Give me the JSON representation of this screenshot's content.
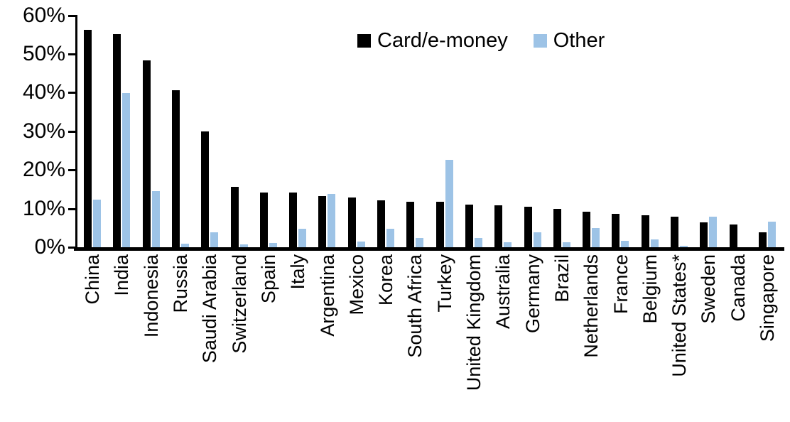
{
  "chart_data": {
    "type": "bar",
    "categories": [
      "China",
      "India",
      "Indonesia",
      "Russia",
      "Saudi Arabia",
      "Switzerland",
      "Spain",
      "Italy",
      "Argentina",
      "Mexico",
      "Korea",
      "South Africa",
      "Turkey",
      "United Kingdom",
      "Australia",
      "Germany",
      "Brazil",
      "Netherlands",
      "France",
      "Belgium",
      "United States*",
      "Sweden",
      "Canada",
      "Singapore"
    ],
    "series": [
      {
        "name": "Card/e-money",
        "color": "#000000",
        "values": [
          56.3,
          55.1,
          48.4,
          40.6,
          30.0,
          15.6,
          14.2,
          14.1,
          13.3,
          12.8,
          12.2,
          11.8,
          11.7,
          11.1,
          10.8,
          10.5,
          9.9,
          9.2,
          8.6,
          8.3,
          7.9,
          6.5,
          5.9,
          3.9
        ]
      },
      {
        "name": "Other",
        "color": "#9DC3E6",
        "values": [
          12.3,
          39.9,
          14.6,
          0.9,
          3.9,
          0.8,
          1.1,
          4.8,
          13.8,
          1.5,
          4.8,
          2.4,
          22.7,
          2.4,
          1.2,
          3.9,
          1.3,
          4.9,
          1.7,
          2.0,
          0.3,
          7.9,
          0,
          6.6
        ]
      }
    ],
    "ylabel": "",
    "xlabel": "",
    "ylim": [
      0,
      60
    ],
    "ytick_step": 10,
    "ytick_labels": [
      "0%",
      "10%",
      "20%",
      "30%",
      "40%",
      "50%",
      "60%"
    ],
    "grid": false,
    "legend_position": "top-center",
    "xlabel_rotation": -90
  },
  "legend": {
    "items": [
      {
        "label": "Card/e-money",
        "color": "#000000"
      },
      {
        "label": "Other",
        "color": "#9DC3E6"
      }
    ]
  }
}
